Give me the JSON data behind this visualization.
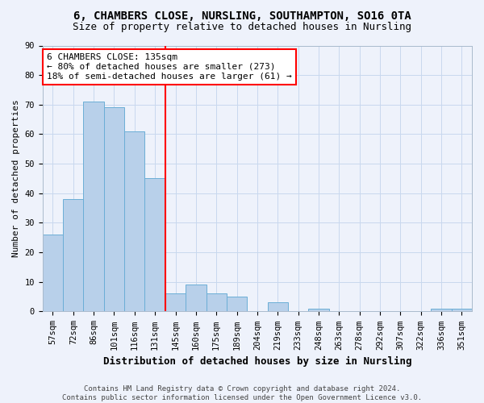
{
  "title": "6, CHAMBERS CLOSE, NURSLING, SOUTHAMPTON, SO16 0TA",
  "subtitle": "Size of property relative to detached houses in Nursling",
  "xlabel": "Distribution of detached houses by size in Nursling",
  "ylabel": "Number of detached properties",
  "footer": "Contains HM Land Registry data © Crown copyright and database right 2024.\nContains public sector information licensed under the Open Government Licence v3.0.",
  "bin_labels": [
    "57sqm",
    "72sqm",
    "86sqm",
    "101sqm",
    "116sqm",
    "131sqm",
    "145sqm",
    "160sqm",
    "175sqm",
    "189sqm",
    "204sqm",
    "219sqm",
    "233sqm",
    "248sqm",
    "263sqm",
    "278sqm",
    "292sqm",
    "307sqm",
    "322sqm",
    "336sqm",
    "351sqm"
  ],
  "bin_values": [
    26,
    38,
    71,
    69,
    61,
    45,
    6,
    9,
    6,
    5,
    0,
    3,
    0,
    1,
    0,
    0,
    0,
    0,
    0,
    1,
    1
  ],
  "bar_color": "#b8d0ea",
  "bar_edgecolor": "#6baed6",
  "grid_color": "#c8d8ee",
  "vline_x": 5.5,
  "vline_color": "red",
  "annotation_text": "6 CHAMBERS CLOSE: 135sqm\n← 80% of detached houses are smaller (273)\n18% of semi-detached houses are larger (61) →",
  "annotation_box_color": "white",
  "annotation_box_edgecolor": "red",
  "ylim": [
    0,
    90
  ],
  "yticks": [
    0,
    10,
    20,
    30,
    40,
    50,
    60,
    70,
    80,
    90
  ],
  "background_color": "#eef2fb",
  "title_fontsize": 10,
  "subtitle_fontsize": 9,
  "xlabel_fontsize": 9,
  "ylabel_fontsize": 8,
  "tick_fontsize": 7.5,
  "footer_fontsize": 6.5,
  "annotation_fontsize": 8
}
